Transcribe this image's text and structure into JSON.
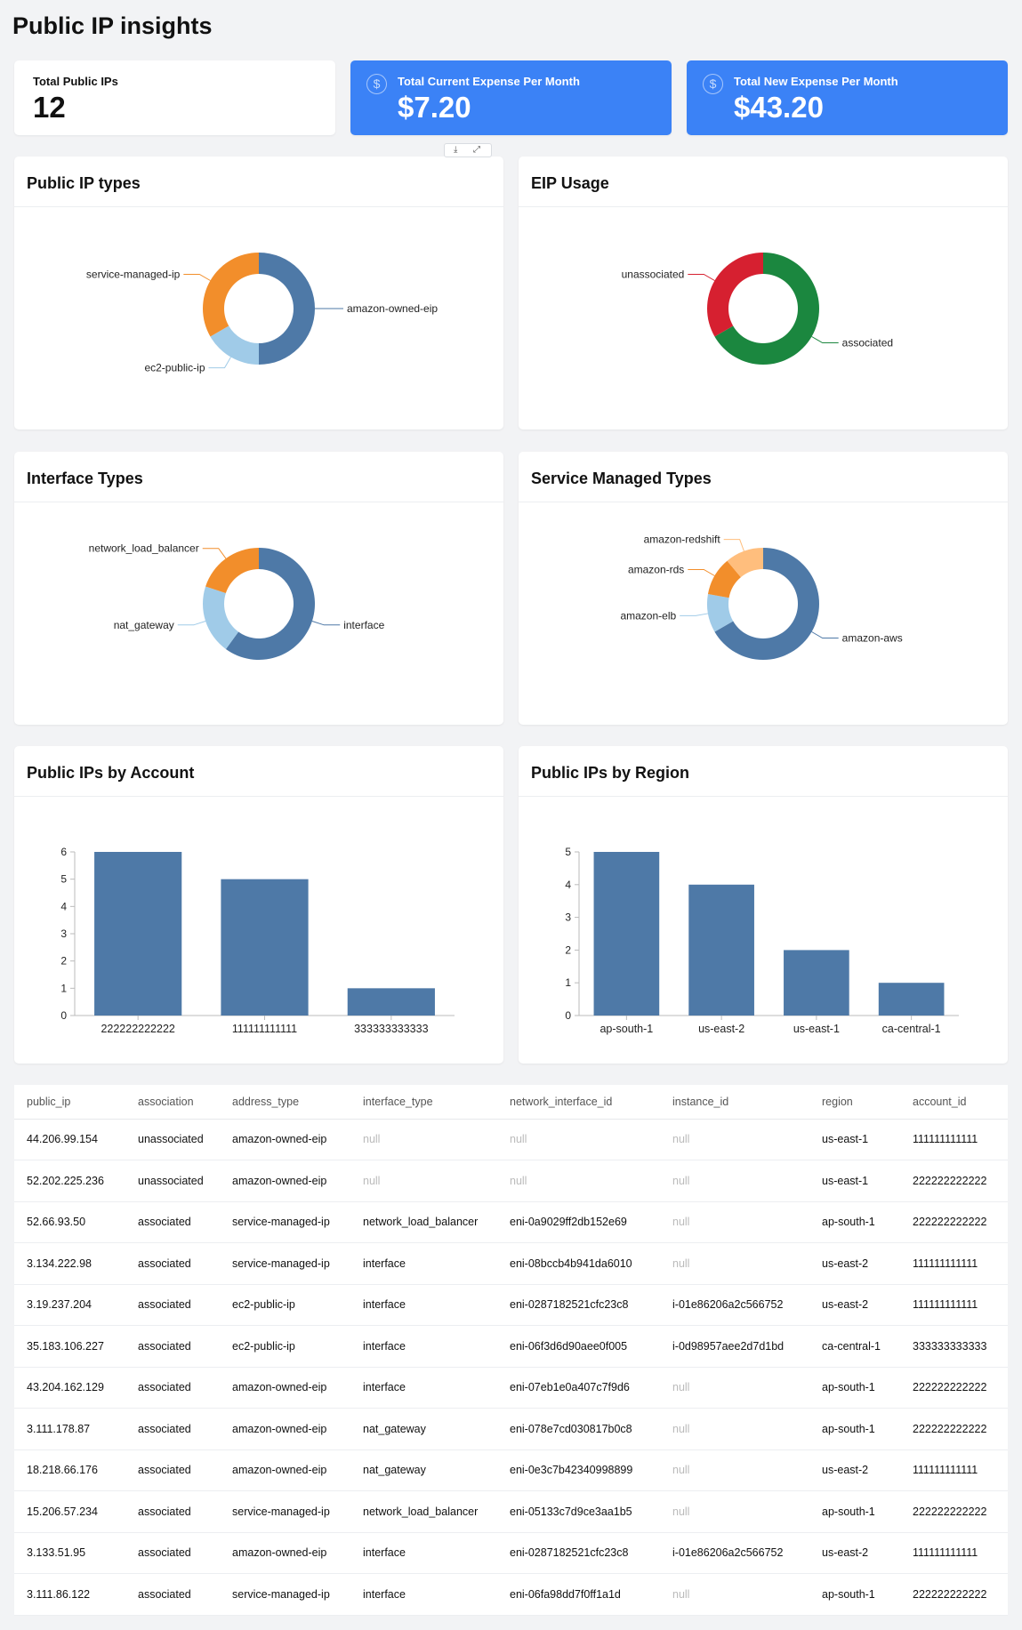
{
  "page": {
    "title": "Public IP insights"
  },
  "kpis": {
    "total_ips": {
      "label": "Total Public IPs",
      "value": "12"
    },
    "current_expense": {
      "label": "Total Current Expense Per Month",
      "value": "$7.20"
    },
    "new_expense": {
      "label": "Total New Expense Per Month",
      "value": "$43.20"
    }
  },
  "icons": {
    "kpi_currency": "$",
    "download": "⤓",
    "expand": "⤢"
  },
  "colors": {
    "accent_blue": "#3b82f6",
    "bar_blue": "#4e79a7"
  },
  "panels": {
    "ip_types": {
      "title": "Public IP types"
    },
    "eip_usage": {
      "title": "EIP Usage"
    },
    "interface_types": {
      "title": "Interface Types"
    },
    "service_managed": {
      "title": "Service Managed Types"
    },
    "by_account": {
      "title": "Public IPs by Account"
    },
    "by_region": {
      "title": "Public IPs by Region"
    }
  },
  "chart_data": [
    {
      "id": "ip_types",
      "type": "pie",
      "donut": true,
      "slices": [
        {
          "label": "amazon-owned-eip",
          "value": 6,
          "color": "#4e79a7"
        },
        {
          "label": "ec2-public-ip",
          "value": 2,
          "color": "#a0cbe8"
        },
        {
          "label": "service-managed-ip",
          "value": 4,
          "color": "#f28e2b"
        }
      ]
    },
    {
      "id": "eip_usage",
      "type": "pie",
      "donut": true,
      "slices": [
        {
          "label": "associated",
          "value": 4,
          "color": "#1b873f"
        },
        {
          "label": "unassociated",
          "value": 2,
          "color": "#d62030"
        }
      ]
    },
    {
      "id": "interface_types",
      "type": "pie",
      "donut": true,
      "slices": [
        {
          "label": "interface",
          "value": 6,
          "color": "#4e79a7"
        },
        {
          "label": "nat_gateway",
          "value": 2,
          "color": "#a0cbe8"
        },
        {
          "label": "network_load_balancer",
          "value": 2,
          "color": "#f28e2b"
        }
      ]
    },
    {
      "id": "service_managed",
      "type": "pie",
      "donut": true,
      "slices": [
        {
          "label": "amazon-aws",
          "value": 6,
          "color": "#4e79a7"
        },
        {
          "label": "amazon-elb",
          "value": 1,
          "color": "#a0cbe8"
        },
        {
          "label": "amazon-rds",
          "value": 1,
          "color": "#f28e2b"
        },
        {
          "label": "amazon-redshift",
          "value": 1,
          "color": "#ffbe7d"
        }
      ]
    },
    {
      "id": "by_account",
      "type": "bar",
      "categories": [
        "222222222222",
        "111111111111",
        "333333333333"
      ],
      "values": [
        6,
        5,
        1
      ],
      "ylim": [
        0,
        6
      ],
      "yticks": [
        0,
        1,
        2,
        3,
        4,
        5,
        6
      ]
    },
    {
      "id": "by_region",
      "type": "bar",
      "categories": [
        "ap-south-1",
        "us-east-2",
        "us-east-1",
        "ca-central-1"
      ],
      "values": [
        5,
        4,
        2,
        1
      ],
      "ylim": [
        0,
        5
      ],
      "yticks": [
        0,
        1,
        2,
        3,
        4,
        5
      ]
    }
  ],
  "table": {
    "columns": [
      "public_ip",
      "association",
      "address_type",
      "interface_type",
      "network_interface_id",
      "instance_id",
      "region",
      "account_id"
    ],
    "rows": [
      [
        "44.206.99.154",
        "unassociated",
        "amazon-owned-eip",
        "null",
        "null",
        "null",
        "us-east-1",
        "111111111111"
      ],
      [
        "52.202.225.236",
        "unassociated",
        "amazon-owned-eip",
        "null",
        "null",
        "null",
        "us-east-1",
        "222222222222"
      ],
      [
        "52.66.93.50",
        "associated",
        "service-managed-ip",
        "network_load_balancer",
        "eni-0a9029ff2db152e69",
        "null",
        "ap-south-1",
        "222222222222"
      ],
      [
        "3.134.222.98",
        "associated",
        "service-managed-ip",
        "interface",
        "eni-08bccb4b941da6010",
        "null",
        "us-east-2",
        "111111111111"
      ],
      [
        "3.19.237.204",
        "associated",
        "ec2-public-ip",
        "interface",
        "eni-0287182521cfc23c8",
        "i-01e86206a2c566752",
        "us-east-2",
        "111111111111"
      ],
      [
        "35.183.106.227",
        "associated",
        "ec2-public-ip",
        "interface",
        "eni-06f3d6d90aee0f005",
        "i-0d98957aee2d7d1bd",
        "ca-central-1",
        "333333333333"
      ],
      [
        "43.204.162.129",
        "associated",
        "amazon-owned-eip",
        "interface",
        "eni-07eb1e0a407c7f9d6",
        "null",
        "ap-south-1",
        "222222222222"
      ],
      [
        "3.111.178.87",
        "associated",
        "amazon-owned-eip",
        "nat_gateway",
        "eni-078e7cd030817b0c8",
        "null",
        "ap-south-1",
        "222222222222"
      ],
      [
        "18.218.66.176",
        "associated",
        "amazon-owned-eip",
        "nat_gateway",
        "eni-0e3c7b42340998899",
        "null",
        "us-east-2",
        "111111111111"
      ],
      [
        "15.206.57.234",
        "associated",
        "service-managed-ip",
        "network_load_balancer",
        "eni-05133c7d9ce3aa1b5",
        "null",
        "ap-south-1",
        "222222222222"
      ],
      [
        "3.133.51.95",
        "associated",
        "amazon-owned-eip",
        "interface",
        "eni-0287182521cfc23c8",
        "i-01e86206a2c566752",
        "us-east-2",
        "111111111111"
      ],
      [
        "3.111.86.122",
        "associated",
        "service-managed-ip",
        "interface",
        "eni-06fa98dd7f0ff1a1d",
        "null",
        "ap-south-1",
        "222222222222"
      ]
    ]
  }
}
